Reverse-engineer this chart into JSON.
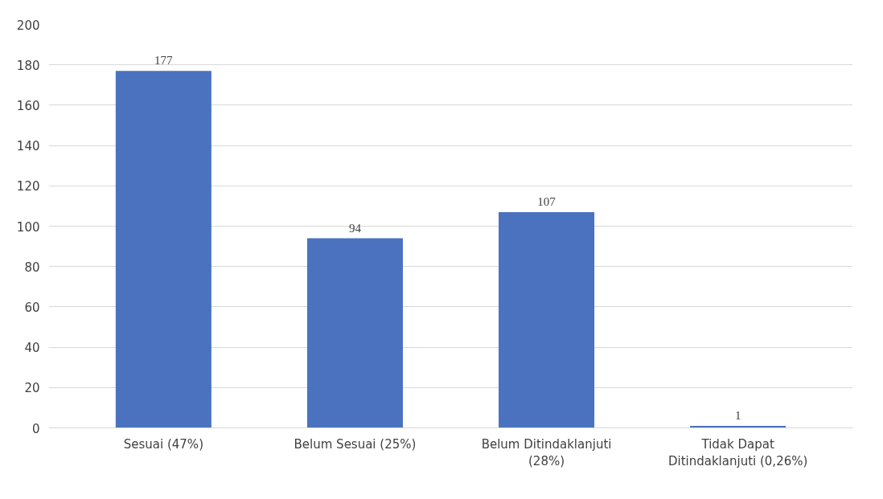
{
  "chart_data": {
    "type": "bar",
    "categories": [
      "Sesuai (47%)",
      "Belum Sesuai (25%)",
      "Belum Ditindaklanjuti (28%)",
      "Tidak Dapat Ditindaklanjuti (0,26%)"
    ],
    "values": [
      177,
      94,
      107,
      1
    ],
    "color": "#4a72bf",
    "ylim": [
      0,
      200
    ],
    "yticks": [
      0,
      20,
      40,
      60,
      80,
      100,
      120,
      140,
      160,
      180,
      200
    ],
    "grid": "y",
    "data_labels": true
  }
}
